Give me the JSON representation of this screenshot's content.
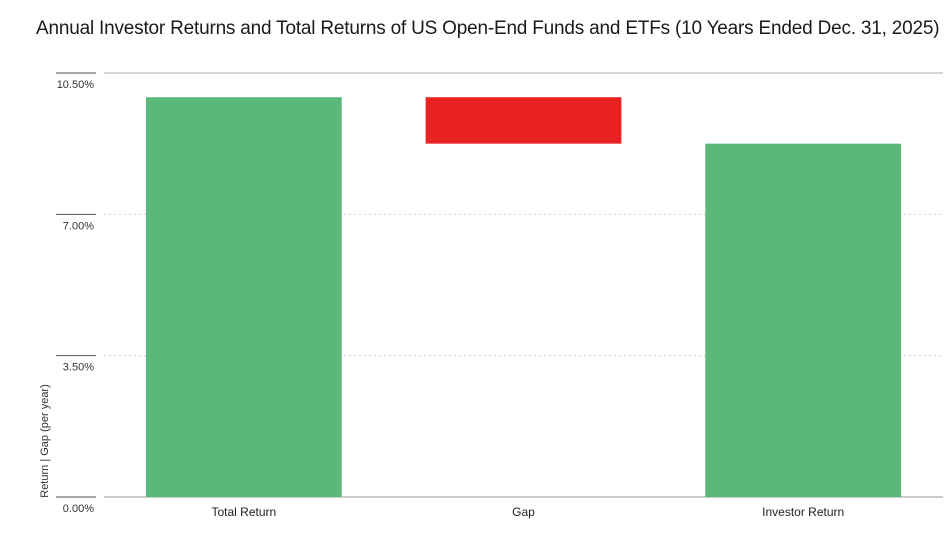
{
  "chart_data": {
    "type": "bar",
    "subtype": "waterfall",
    "title": "Annual Investor Returns and Total Returns of US Open-End Funds and ETFs (10 Years Ended Dec. 31, 2025)",
    "xlabel": "",
    "ylabel": "Return | Gap (per year)",
    "ylim": [
      0,
      10.5
    ],
    "yticks": [
      0,
      3.5,
      7,
      10.5
    ],
    "ytick_labels": [
      "0.00%",
      "3.50%",
      "7.00%",
      "10.50%"
    ],
    "grid": true,
    "categories": [
      "Total Return",
      "Gap",
      "Investor Return"
    ],
    "bars": [
      {
        "category": "Total Return",
        "start": 0,
        "end": 9.9,
        "color": "#5ab87a"
      },
      {
        "category": "Gap",
        "start": 8.75,
        "end": 9.9,
        "color": "#ea2222"
      },
      {
        "category": "Investor Return",
        "start": 0,
        "end": 8.75,
        "color": "#5ab87a"
      }
    ],
    "colors": {
      "positive": "#5ab87a",
      "negative": "#ea2222",
      "grid": "#cccccc",
      "axis": "#999999"
    }
  }
}
